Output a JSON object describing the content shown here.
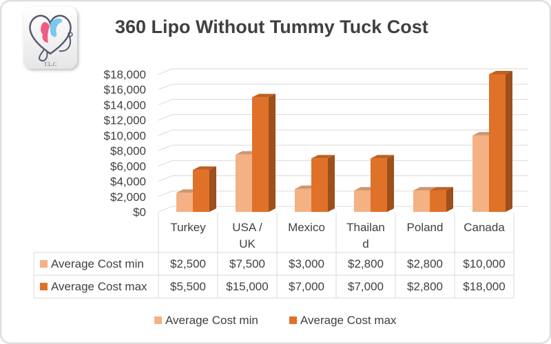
{
  "logo": {
    "text": "T.L.C"
  },
  "chart_data": {
    "type": "bar",
    "title": "360 Lipo Without Tummy Tuck Cost",
    "categories": [
      "Turkey",
      "USA / UK",
      "Mexico",
      "Thailand",
      "Poland",
      "Canada"
    ],
    "category_lines": [
      [
        "Turkey"
      ],
      [
        "USA /",
        "UK"
      ],
      [
        "Mexico"
      ],
      [
        "Thailan",
        "d"
      ],
      [
        "Poland"
      ],
      [
        "Canada"
      ]
    ],
    "series": [
      {
        "name": "Average Cost min",
        "values": [
          2500,
          7500,
          3000,
          2800,
          2800,
          10000
        ],
        "labels": [
          "$2,500",
          "$7,500",
          "$3,000",
          "$2,800",
          "$2,800",
          "$10,000"
        ],
        "color": "#F4B183"
      },
      {
        "name": "Average Cost max",
        "values": [
          5500,
          15000,
          7000,
          7000,
          2800,
          18000
        ],
        "labels": [
          "$5,500",
          "$15,000",
          "$7,000",
          "$7,000",
          "$2,800",
          "$18,000"
        ],
        "color": "#E07128"
      }
    ],
    "ylim": [
      0,
      18000
    ],
    "yticks": [
      "$0",
      "$2,000",
      "$4,000",
      "$6,000",
      "$8,000",
      "$10,000",
      "$12,000",
      "$14,000",
      "$16,000",
      "$18,000"
    ],
    "grid": true,
    "legend": "bottom",
    "data_table": true,
    "style": "3d-clustered-column"
  }
}
